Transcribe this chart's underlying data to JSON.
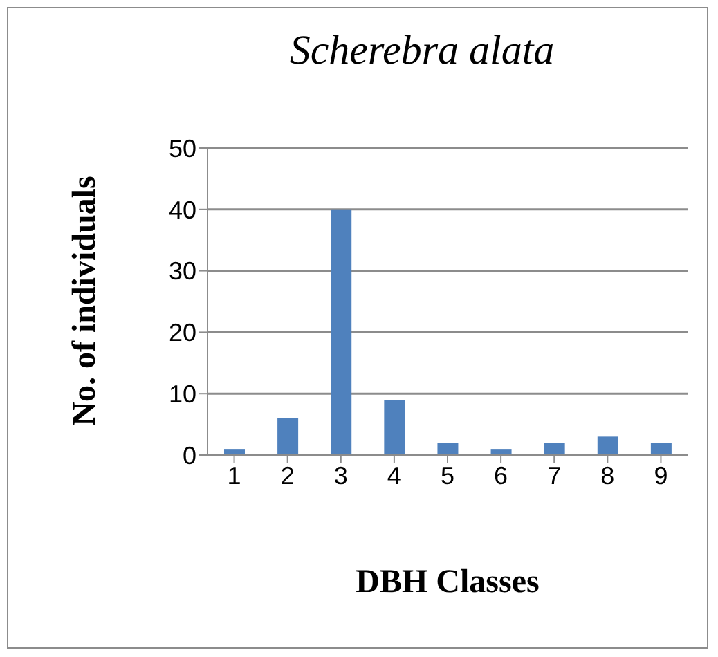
{
  "chart_data": {
    "type": "bar",
    "title": "Scherebra alata",
    "xlabel": "DBH Classes",
    "ylabel": "No. of individuals",
    "categories": [
      "1",
      "2",
      "3",
      "4",
      "5",
      "6",
      "7",
      "8",
      "9"
    ],
    "values": [
      1,
      6,
      40,
      9,
      2,
      1,
      2,
      3,
      2
    ],
    "color": "#4f81bd",
    "ylim": [
      0,
      50
    ],
    "yticks": [
      0,
      10,
      20,
      30,
      40,
      50
    ],
    "grid": "y"
  }
}
